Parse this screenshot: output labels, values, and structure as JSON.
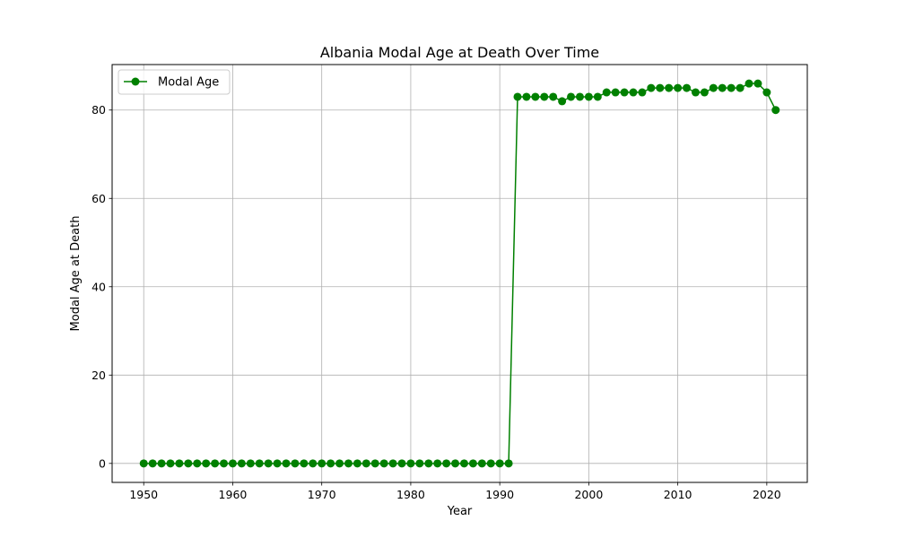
{
  "chart_data": {
    "type": "line",
    "title": "Albania Modal Age at Death Over Time",
    "xlabel": "Year",
    "ylabel": "Modal Age at Death",
    "xlim": [
      1946.45,
      2024.55
    ],
    "ylim": [
      -4.3,
      90.3
    ],
    "xticks": [
      1950,
      1960,
      1970,
      1980,
      1990,
      2000,
      2010,
      2020
    ],
    "yticks": [
      0,
      20,
      40,
      60,
      80
    ],
    "grid": true,
    "legend_position": "top-left",
    "color": "#008000",
    "series": [
      {
        "name": "Modal Age",
        "x": [
          1950,
          1951,
          1952,
          1953,
          1954,
          1955,
          1956,
          1957,
          1958,
          1959,
          1960,
          1961,
          1962,
          1963,
          1964,
          1965,
          1966,
          1967,
          1968,
          1969,
          1970,
          1971,
          1972,
          1973,
          1974,
          1975,
          1976,
          1977,
          1978,
          1979,
          1980,
          1981,
          1982,
          1983,
          1984,
          1985,
          1986,
          1987,
          1988,
          1989,
          1990,
          1991,
          1992,
          1993,
          1994,
          1995,
          1996,
          1997,
          1998,
          1999,
          2000,
          2001,
          2002,
          2003,
          2004,
          2005,
          2006,
          2007,
          2008,
          2009,
          2010,
          2011,
          2012,
          2013,
          2014,
          2015,
          2016,
          2017,
          2018,
          2019,
          2020,
          2021
        ],
        "values": [
          0,
          0,
          0,
          0,
          0,
          0,
          0,
          0,
          0,
          0,
          0,
          0,
          0,
          0,
          0,
          0,
          0,
          0,
          0,
          0,
          0,
          0,
          0,
          0,
          0,
          0,
          0,
          0,
          0,
          0,
          0,
          0,
          0,
          0,
          0,
          0,
          0,
          0,
          0,
          0,
          0,
          0,
          83,
          83,
          83,
          83,
          83,
          82,
          83,
          83,
          83,
          83,
          84,
          84,
          84,
          84,
          84,
          85,
          85,
          85,
          85,
          85,
          84,
          84,
          85,
          85,
          85,
          85,
          86,
          86,
          84,
          80
        ]
      }
    ]
  }
}
